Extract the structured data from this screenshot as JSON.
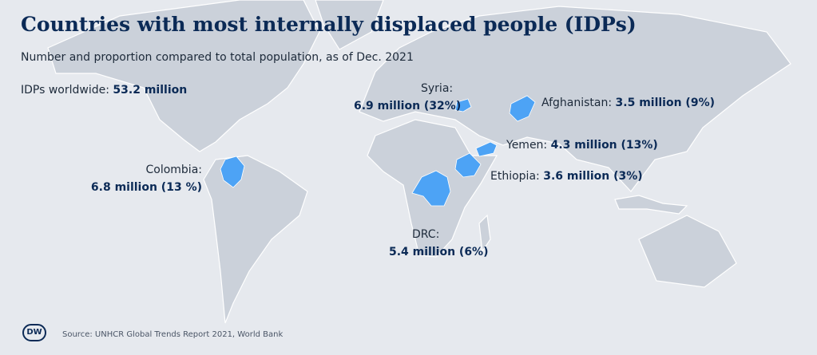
{
  "header": {
    "title": "Countries with most internally displaced people (IDPs)",
    "subtitle": "Number and proportion compared to total population, as of Dec. 2021",
    "total_label": "IDPs worldwide:",
    "total_value": "53.2 million"
  },
  "countries": [
    {
      "name": "Syria:",
      "value": "6.9 million (32%)"
    },
    {
      "name": "Afghanistan:",
      "value": "3.5 million (9%)"
    },
    {
      "name": "Yemen:",
      "value": "4.3 million (13%)"
    },
    {
      "name": "Ethiopia:",
      "value": "3.6 million (3%)"
    },
    {
      "name": "Colombia:",
      "value": "6.8 million (13 %)"
    },
    {
      "name": "DRC:",
      "value": "5.4 million (6%)"
    }
  ],
  "footer": {
    "logo": "DW",
    "source": "Source: UNHCR Global Trends Report 2021, World Bank"
  }
}
